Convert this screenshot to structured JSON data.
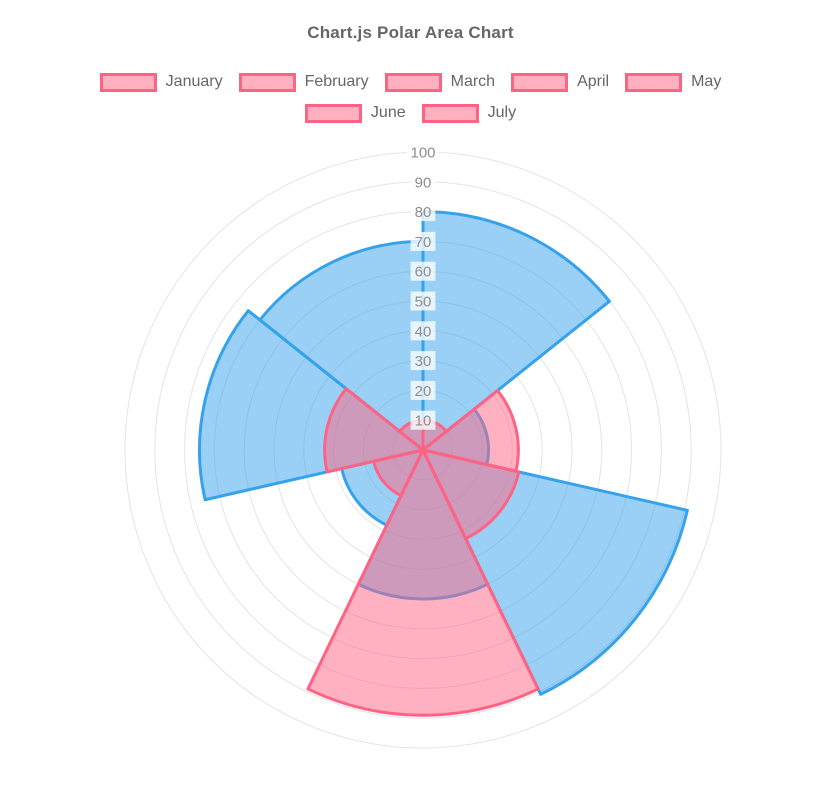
{
  "title": "Chart.js Polar Area Chart",
  "legend": {
    "items": [
      "January",
      "February",
      "March",
      "April",
      "May",
      "June",
      "July"
    ],
    "swatch_fill": "rgba(255,99,132,0.5)",
    "swatch_border": "#FF6384",
    "text_color": "#666666",
    "position": "top"
  },
  "chart_data": {
    "type": "polarArea",
    "title": "Chart.js Polar Area Chart",
    "categories": [
      "January",
      "February",
      "March",
      "April",
      "May",
      "June",
      "July"
    ],
    "series": [
      {
        "name": "pink",
        "fill": "rgba(255,99,132,0.5)",
        "border_color": "#FF6384",
        "border_width": 3,
        "values": [
          10,
          32,
          33,
          89,
          17,
          33,
          10
        ]
      },
      {
        "name": "blue",
        "fill": "rgba(54,162,235,0.5)",
        "border_color": "#36A2EB",
        "border_width": 3,
        "values": [
          80,
          22,
          91,
          50,
          28,
          75,
          70
        ]
      }
    ],
    "draw_note": "series drawn in reverse order so first series (pink) renders on top",
    "start_angle_deg": 0,
    "direction": "clockwise",
    "scale": {
      "min": 0,
      "max": 100,
      "step": 10,
      "tick_labels": [
        "10",
        "20",
        "30",
        "40",
        "50",
        "60",
        "70",
        "80",
        "90",
        "100"
      ],
      "tick_color": "#8e8e8e",
      "tick_backdrop": "rgba(255,255,255,0.78)"
    },
    "grid": {
      "show": true,
      "color": "#e4e4e4"
    },
    "legend_position": "top"
  },
  "colors": {
    "background": "#ffffff",
    "title_text": "#666666"
  }
}
